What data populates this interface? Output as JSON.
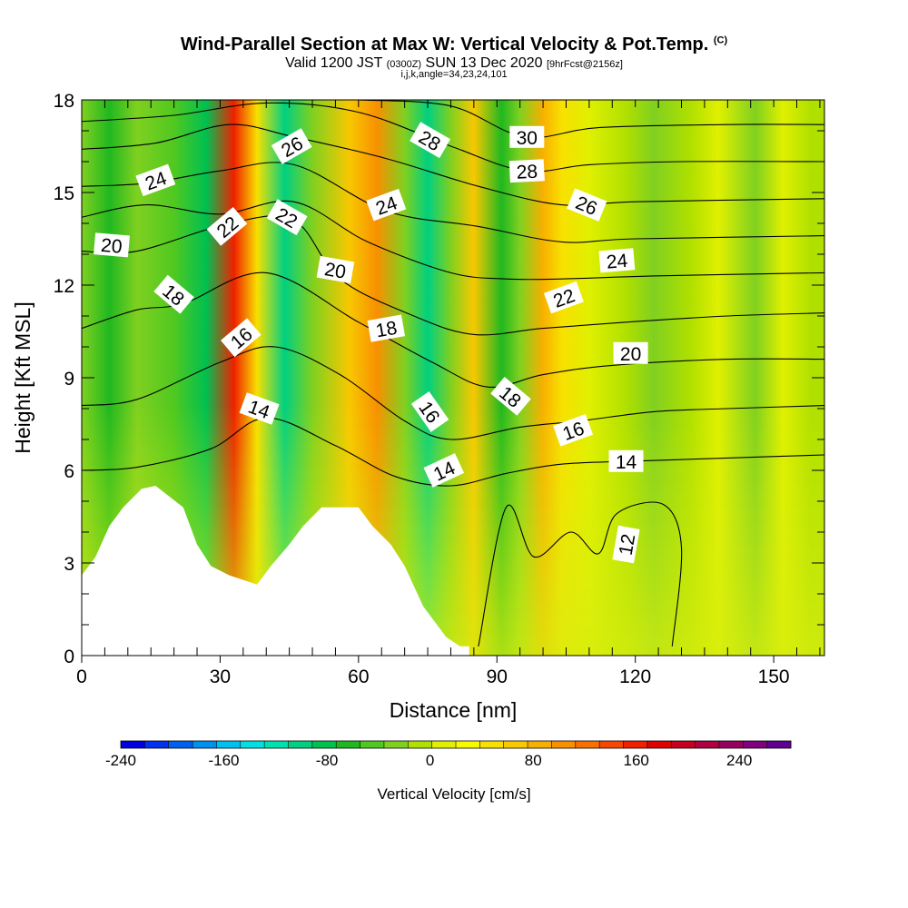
{
  "titles": {
    "main": "Wind-Parallel Section at Max W: Vertical Velocity & Pot.Temp.",
    "copyright": "(C)",
    "valid_prefix": "Valid 1200 JST",
    "valid_utc": "(0300Z)",
    "valid_date": "SUN 13 Dec 2020",
    "forecast": "[9hrFcst@2156z]",
    "params": "i,j,k,angle=34,23,24,101"
  },
  "chart_data": {
    "type": "heatmap",
    "xlabel": "Distance [nm]",
    "ylabel": "Height [Kft MSL]",
    "xlim": [
      0,
      161
    ],
    "ylim": [
      0,
      18
    ],
    "xticks": [
      0,
      30,
      60,
      90,
      120,
      150
    ],
    "yticks": [
      0,
      3,
      6,
      9,
      12,
      15,
      18
    ],
    "colorbar": {
      "label": "Vertical Velocity [cm/s]",
      "min": -240,
      "max": 280,
      "ticks": [
        -240,
        -160,
        -80,
        0,
        80,
        160,
        240
      ],
      "colors": [
        "#0000e0",
        "#0030f0",
        "#0060f0",
        "#0090f0",
        "#00c0f0",
        "#00e0e0",
        "#00e0b0",
        "#00d080",
        "#00c050",
        "#20b820",
        "#50c820",
        "#80d020",
        "#b0e000",
        "#e0f000",
        "#f8f800",
        "#f8e000",
        "#f8c800",
        "#f8b000",
        "#f89000",
        "#f87000",
        "#f84800",
        "#f02000",
        "#e00000",
        "#c80020",
        "#b00040",
        "#980060",
        "#800080",
        "#600090"
      ]
    },
    "velocity_bands": [
      {
        "x": 0,
        "w": -20,
        "top": 1
      },
      {
        "x": 6,
        "w": -70,
        "top": 1
      },
      {
        "x": 12,
        "w": -20,
        "top": 1
      },
      {
        "x": 20,
        "w": -40,
        "top": 0.6
      },
      {
        "x": 27,
        "w": -80,
        "top": 1
      },
      {
        "x": 33,
        "w": 150,
        "top": 1
      },
      {
        "x": 38,
        "w": 40,
        "top": 0.85
      },
      {
        "x": 44,
        "w": -100,
        "top": 1
      },
      {
        "x": 50,
        "w": -20,
        "top": 1
      },
      {
        "x": 58,
        "w": 60,
        "top": 1
      },
      {
        "x": 64,
        "w": 100,
        "top": 1
      },
      {
        "x": 70,
        "w": -30,
        "top": 1
      },
      {
        "x": 75,
        "w": -110,
        "top": 1
      },
      {
        "x": 80,
        "w": -30,
        "top": 0.8
      },
      {
        "x": 85,
        "w": 60,
        "top": 1
      },
      {
        "x": 91,
        "w": -60,
        "top": 1
      },
      {
        "x": 95,
        "w": -20,
        "top": 1
      },
      {
        "x": 100,
        "w": 90,
        "top": 1
      },
      {
        "x": 104,
        "w": 40,
        "top": 1
      },
      {
        "x": 110,
        "w": 10,
        "top": 1
      },
      {
        "x": 118,
        "w": -10,
        "top": 1
      },
      {
        "x": 124,
        "w": -25,
        "top": 1
      },
      {
        "x": 132,
        "w": -10,
        "top": 1
      },
      {
        "x": 138,
        "w": 10,
        "top": 1
      },
      {
        "x": 146,
        "w": -25,
        "top": 1
      },
      {
        "x": 152,
        "w": 5,
        "top": 1
      },
      {
        "x": 158,
        "w": -15,
        "top": 1
      },
      {
        "x": 161,
        "w": -15,
        "top": 1
      }
    ],
    "terrain_kft": [
      {
        "x": 0,
        "h": 2.6
      },
      {
        "x": 3,
        "h": 3.2
      },
      {
        "x": 6,
        "h": 4.2
      },
      {
        "x": 9,
        "h": 4.8
      },
      {
        "x": 13,
        "h": 5.4
      },
      {
        "x": 16,
        "h": 5.5
      },
      {
        "x": 22,
        "h": 4.8
      },
      {
        "x": 25,
        "h": 3.6
      },
      {
        "x": 28,
        "h": 2.9
      },
      {
        "x": 32,
        "h": 2.6
      },
      {
        "x": 38,
        "h": 2.3
      },
      {
        "x": 41,
        "h": 2.9
      },
      {
        "x": 45,
        "h": 3.6
      },
      {
        "x": 48,
        "h": 4.2
      },
      {
        "x": 52,
        "h": 4.8
      },
      {
        "x": 60,
        "h": 4.8
      },
      {
        "x": 63,
        "h": 4.2
      },
      {
        "x": 67,
        "h": 3.6
      },
      {
        "x": 70,
        "h": 2.9
      },
      {
        "x": 74,
        "h": 1.6
      },
      {
        "x": 77,
        "h": 1.0
      },
      {
        "x": 79,
        "h": 0.6
      },
      {
        "x": 82,
        "h": 0.3
      },
      {
        "x": 84,
        "h": 0.3
      }
    ],
    "theta_contours": [
      {
        "label": "12",
        "points": [
          [
            86,
            0.3
          ],
          [
            92,
            4.8
          ],
          [
            98,
            3.2
          ],
          [
            106,
            4.0
          ],
          [
            112,
            3.3
          ],
          [
            116,
            4.6
          ],
          [
            126,
            4.9
          ],
          [
            130,
            3.5
          ],
          [
            128,
            0.3
          ]
        ]
      },
      {
        "label": "14",
        "points": [
          [
            0,
            6.0
          ],
          [
            12,
            6.1
          ],
          [
            28,
            6.7
          ],
          [
            40,
            7.7
          ],
          [
            55,
            6.8
          ],
          [
            68,
            5.8
          ],
          [
            80,
            5.5
          ],
          [
            92,
            5.9
          ],
          [
            104,
            6.2
          ],
          [
            120,
            6.3
          ],
          [
            140,
            6.4
          ],
          [
            161,
            6.5
          ]
        ]
      },
      {
        "label": "16",
        "points": [
          [
            0,
            8.1
          ],
          [
            12,
            8.3
          ],
          [
            30,
            9.5
          ],
          [
            42,
            10.0
          ],
          [
            56,
            9.1
          ],
          [
            70,
            7.6
          ],
          [
            80,
            7.0
          ],
          [
            95,
            7.4
          ],
          [
            108,
            7.6
          ],
          [
            124,
            7.9
          ],
          [
            140,
            8.0
          ],
          [
            161,
            8.1
          ]
        ]
      },
      {
        "label": "18",
        "points": [
          [
            0,
            10.6
          ],
          [
            12,
            11.2
          ],
          [
            22,
            11.4
          ],
          [
            40,
            12.4
          ],
          [
            60,
            10.8
          ],
          [
            76,
            9.5
          ],
          [
            88,
            8.7
          ],
          [
            100,
            9.1
          ],
          [
            115,
            9.4
          ],
          [
            140,
            9.6
          ],
          [
            161,
            9.6
          ]
        ]
      },
      {
        "label": "20",
        "points": [
          [
            0,
            13.1
          ],
          [
            12,
            13.1
          ],
          [
            32,
            14.0
          ],
          [
            46,
            14.1
          ],
          [
            56,
            12.2
          ],
          [
            72,
            11.0
          ],
          [
            85,
            10.4
          ],
          [
            100,
            10.6
          ],
          [
            118,
            10.8
          ],
          [
            140,
            11.0
          ],
          [
            161,
            11.1
          ]
        ]
      },
      {
        "label": "22",
        "points": [
          [
            0,
            14.2
          ],
          [
            14,
            14.6
          ],
          [
            30,
            14.3
          ],
          [
            46,
            14.7
          ],
          [
            62,
            13.4
          ],
          [
            80,
            12.4
          ],
          [
            92,
            12.2
          ],
          [
            104,
            12.2
          ],
          [
            125,
            12.3
          ],
          [
            161,
            12.4
          ]
        ]
      },
      {
        "label": "24",
        "points": [
          [
            0,
            15.2
          ],
          [
            14,
            15.3
          ],
          [
            30,
            15.7
          ],
          [
            46,
            15.9
          ],
          [
            66,
            14.4
          ],
          [
            86,
            13.9
          ],
          [
            104,
            13.4
          ],
          [
            120,
            13.5
          ],
          [
            161,
            13.6
          ]
        ]
      },
      {
        "label": "26",
        "points": [
          [
            0,
            16.4
          ],
          [
            16,
            16.6
          ],
          [
            32,
            17.2
          ],
          [
            46,
            16.8
          ],
          [
            66,
            16.1
          ],
          [
            86,
            15.2
          ],
          [
            104,
            14.6
          ],
          [
            120,
            14.7
          ],
          [
            161,
            14.8
          ]
        ]
      },
      {
        "label": "28",
        "points": [
          [
            0,
            17.3
          ],
          [
            20,
            17.5
          ],
          [
            40,
            17.9
          ],
          [
            60,
            17.6
          ],
          [
            80,
            16.5
          ],
          [
            96,
            15.7
          ],
          [
            110,
            15.9
          ],
          [
            130,
            16.0
          ],
          [
            161,
            16.0
          ]
        ]
      },
      {
        "label": "30",
        "points": [
          [
            60,
            18.0
          ],
          [
            80,
            17.8
          ],
          [
            96,
            16.8
          ],
          [
            112,
            17.1
          ],
          [
            140,
            17.2
          ],
          [
            161,
            17.2
          ]
        ]
      }
    ],
    "contour_labels": [
      {
        "text": "30",
        "x": 96.5,
        "y": 16.8,
        "rot": 0
      },
      {
        "text": "28",
        "x": 75.5,
        "y": 16.7,
        "rot": 30
      },
      {
        "text": "28",
        "x": 96.5,
        "y": 15.7,
        "rot": -3
      },
      {
        "text": "26",
        "x": 45.5,
        "y": 16.5,
        "rot": -30
      },
      {
        "text": "26",
        "x": 109.5,
        "y": 14.6,
        "rot": 22
      },
      {
        "text": "24",
        "x": 16,
        "y": 15.4,
        "rot": -20
      },
      {
        "text": "24",
        "x": 66,
        "y": 14.6,
        "rot": -20
      },
      {
        "text": "24",
        "x": 116,
        "y": 12.8,
        "rot": -5
      },
      {
        "text": "22",
        "x": 31.5,
        "y": 13.9,
        "rot": -40
      },
      {
        "text": "22",
        "x": 44.5,
        "y": 14.2,
        "rot": 30
      },
      {
        "text": "22",
        "x": 104.5,
        "y": 11.6,
        "rot": -20
      },
      {
        "text": "20",
        "x": 6.5,
        "y": 13.3,
        "rot": 5
      },
      {
        "text": "20",
        "x": 55,
        "y": 12.5,
        "rot": 10
      },
      {
        "text": "20",
        "x": 119,
        "y": 9.8,
        "rot": 0
      },
      {
        "text": "18",
        "x": 20,
        "y": 11.7,
        "rot": 40
      },
      {
        "text": "18",
        "x": 66,
        "y": 10.6,
        "rot": -10
      },
      {
        "text": "18",
        "x": 93,
        "y": 8.4,
        "rot": 40
      },
      {
        "text": "16",
        "x": 34.5,
        "y": 10.3,
        "rot": -40
      },
      {
        "text": "16",
        "x": 75.5,
        "y": 7.9,
        "rot": 55
      },
      {
        "text": "16",
        "x": 106.5,
        "y": 7.3,
        "rot": -20
      },
      {
        "text": "14",
        "x": 38.5,
        "y": 8.0,
        "rot": 20
      },
      {
        "text": "14",
        "x": 78.5,
        "y": 6.0,
        "rot": -25
      },
      {
        "text": "14",
        "x": 118,
        "y": 6.3,
        "rot": 0
      },
      {
        "text": "12",
        "x": 118,
        "y": 3.6,
        "rot": -80
      }
    ]
  }
}
